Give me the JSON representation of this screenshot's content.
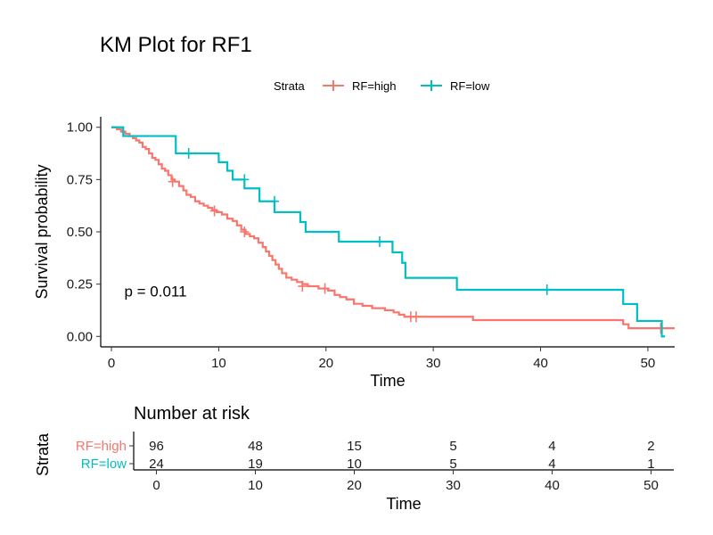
{
  "chart_data": [
    {
      "type": "line",
      "subtype": "kaplan-meier",
      "title": "KM Plot for RF1",
      "xlabel": "Time",
      "ylabel": "Survival probability",
      "xlim": [
        -1,
        52.5
      ],
      "ylim": [
        -0.05,
        1.05
      ],
      "xticks": [
        0,
        10,
        20,
        30,
        40,
        50
      ],
      "yticks": [
        0,
        0.25,
        0.5,
        0.75,
        1.0
      ],
      "ytick_labels": [
        "0.00",
        "0.25",
        "0.50",
        "0.75",
        "1.00"
      ],
      "legend": {
        "title": "Strata",
        "position": "top",
        "entries": [
          "RF=high",
          "RF=low"
        ]
      },
      "annotation": "p = 0.011",
      "annotation_at": {
        "x": 1.2,
        "y": 0.19
      },
      "series": [
        {
          "name": "RF=high",
          "color": "#F8766D",
          "steps": [
            [
              0,
              1.0
            ],
            [
              0.5,
              0.99
            ],
            [
              0.9,
              0.979
            ],
            [
              1.3,
              0.969
            ],
            [
              1.7,
              0.958
            ],
            [
              2.0,
              0.948
            ],
            [
              2.3,
              0.937
            ],
            [
              2.6,
              0.927
            ],
            [
              2.9,
              0.906
            ],
            [
              3.2,
              0.896
            ],
            [
              3.5,
              0.875
            ],
            [
              3.8,
              0.854
            ],
            [
              4.1,
              0.844
            ],
            [
              4.4,
              0.823
            ],
            [
              4.7,
              0.802
            ],
            [
              5.0,
              0.792
            ],
            [
              5.3,
              0.771
            ],
            [
              5.6,
              0.75
            ],
            [
              5.9,
              0.74
            ],
            [
              6.3,
              0.719
            ],
            [
              6.7,
              0.698
            ],
            [
              7.0,
              0.677
            ],
            [
              7.4,
              0.667
            ],
            [
              7.8,
              0.646
            ],
            [
              8.2,
              0.635
            ],
            [
              8.6,
              0.625
            ],
            [
              9.0,
              0.615
            ],
            [
              9.4,
              0.604
            ],
            [
              9.8,
              0.594
            ],
            [
              10.3,
              0.583
            ],
            [
              10.8,
              0.563
            ],
            [
              11.3,
              0.552
            ],
            [
              11.7,
              0.531
            ],
            [
              12.1,
              0.51
            ],
            [
              12.5,
              0.49
            ],
            [
              12.9,
              0.479
            ],
            [
              13.3,
              0.469
            ],
            [
              13.7,
              0.448
            ],
            [
              14.1,
              0.427
            ],
            [
              14.4,
              0.406
            ],
            [
              14.7,
              0.385
            ],
            [
              15.0,
              0.365
            ],
            [
              15.3,
              0.344
            ],
            [
              15.6,
              0.323
            ],
            [
              15.9,
              0.302
            ],
            [
              16.3,
              0.281
            ],
            [
              16.8,
              0.271
            ],
            [
              17.3,
              0.26
            ],
            [
              17.8,
              0.25
            ],
            [
              18.3,
              0.24
            ],
            [
              19.3,
              0.229
            ],
            [
              20.2,
              0.219
            ],
            [
              20.8,
              0.198
            ],
            [
              21.3,
              0.188
            ],
            [
              21.9,
              0.177
            ],
            [
              22.6,
              0.156
            ],
            [
              23.4,
              0.146
            ],
            [
              24.3,
              0.135
            ],
            [
              25.5,
              0.125
            ],
            [
              26.3,
              0.115
            ],
            [
              26.8,
              0.104
            ],
            [
              27.3,
              0.094
            ],
            [
              33.7,
              0.078
            ],
            [
              47.7,
              0.058
            ],
            [
              48.2,
              0.039
            ],
            [
              52.5,
              0.039
            ]
          ],
          "censor": [
            [
              5.7,
              0.74
            ],
            [
              9.6,
              0.6
            ],
            [
              12.4,
              0.5
            ],
            [
              17.8,
              0.24
            ],
            [
              19.9,
              0.229
            ],
            [
              27.9,
              0.094
            ],
            [
              28.4,
              0.094
            ],
            [
              51.2,
              0.039
            ]
          ]
        },
        {
          "name": "RF=low",
          "color": "#00BFC4",
          "steps": [
            [
              0,
              1.0
            ],
            [
              1.1,
              0.958
            ],
            [
              6.0,
              0.875
            ],
            [
              10.0,
              0.833
            ],
            [
              10.8,
              0.792
            ],
            [
              11.3,
              0.75
            ],
            [
              12.4,
              0.708
            ],
            [
              13.8,
              0.646
            ],
            [
              15.2,
              0.594
            ],
            [
              17.6,
              0.547
            ],
            [
              18.1,
              0.5
            ],
            [
              21.2,
              0.453
            ],
            [
              26.2,
              0.402
            ],
            [
              27.1,
              0.352
            ],
            [
              27.4,
              0.28
            ],
            [
              32.2,
              0.223
            ],
            [
              47.7,
              0.155
            ],
            [
              49.0,
              0.074
            ],
            [
              51.3,
              0.0
            ],
            [
              51.6,
              0.0
            ]
          ],
          "censor": [
            [
              7.2,
              0.875
            ],
            [
              12.4,
              0.75
            ],
            [
              15.2,
              0.646
            ],
            [
              25.0,
              0.453
            ],
            [
              40.6,
              0.223
            ]
          ]
        }
      ]
    },
    {
      "type": "table",
      "title": "Number at risk",
      "xlabel": "Time",
      "ylabel": "Strata",
      "times": [
        0,
        10,
        20,
        30,
        40,
        50
      ],
      "tick_labels": [
        "0",
        "10",
        "20",
        "30",
        "40",
        "50"
      ],
      "rows": [
        {
          "name": "RF=high",
          "color": "#F8766D",
          "values": [
            "96",
            "48",
            "15",
            "5",
            "4",
            "2"
          ]
        },
        {
          "name": "RF=low",
          "color": "#00BFC4",
          "values": [
            "24",
            "19",
            "10",
            "5",
            "4",
            "1"
          ]
        }
      ]
    }
  ]
}
